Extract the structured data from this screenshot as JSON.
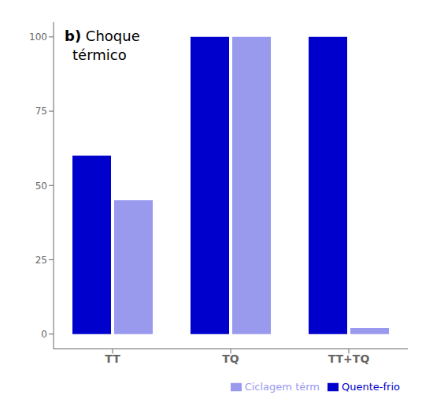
{
  "chart_data": {
    "type": "bar",
    "categories": [
      "TT",
      "TQ",
      "TT+TQ"
    ],
    "series": [
      {
        "name": "Quente-frio",
        "color": "#0000cc",
        "values": [
          60,
          100,
          100
        ]
      },
      {
        "name": "Ciclagem térm",
        "color": "#9999ee",
        "values": [
          45,
          100,
          2
        ]
      }
    ],
    "ylim": [
      -5,
      105
    ],
    "yticks": [
      0,
      25,
      50,
      75,
      100
    ],
    "grid": false,
    "legend": "lower right",
    "annotations": [
      "b)",
      "Choque",
      "térmico"
    ]
  }
}
